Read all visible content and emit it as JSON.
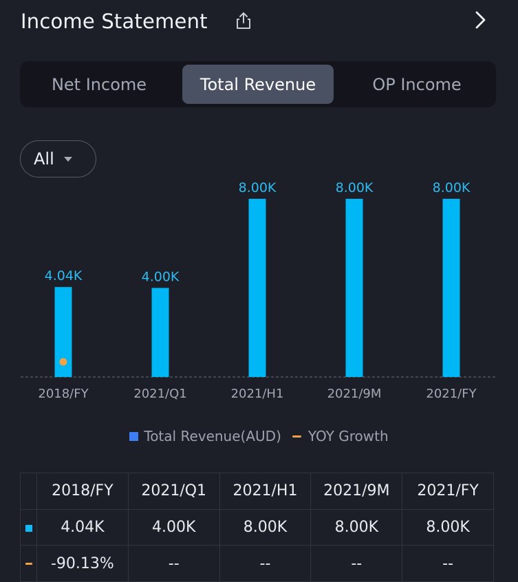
{
  "header": {
    "title": "Income Statement",
    "share_icon": "share-icon",
    "next_icon": "chevron-right-icon"
  },
  "tabs": [
    {
      "label": "Net Income",
      "active": false
    },
    {
      "label": "Total Revenue",
      "active": true
    },
    {
      "label": "OP Income",
      "active": false
    }
  ],
  "filter": {
    "label": "All",
    "icon": "caret-down-icon"
  },
  "colors": {
    "bar": "#00b7f5",
    "bar_label": "#2fbaf0",
    "yoy_marker": "#f2a246",
    "legend_revenue": "#3d7ef5",
    "negative": "#e8474d"
  },
  "chart_data": {
    "type": "bar",
    "categories": [
      "2018/FY",
      "2021/Q1",
      "2021/H1",
      "2021/9M",
      "2021/FY"
    ],
    "series": [
      {
        "name": "Total Revenue(AUD)",
        "type": "bar",
        "values": [
          4040,
          4000,
          8000,
          8000,
          8000
        ],
        "labels": [
          "4.04K",
          "4.00K",
          "8.00K",
          "8.00K",
          "8.00K"
        ]
      },
      {
        "name": "YOY Growth",
        "type": "line",
        "values": [
          -90.13,
          null,
          null,
          null,
          null
        ]
      }
    ],
    "ylim": [
      0,
      8000
    ],
    "legend": "bottom",
    "grid": false
  },
  "legend": {
    "revenue_label": "Total Revenue(AUD)",
    "yoy_label": "YOY Growth"
  },
  "table": {
    "headers": [
      "2018/FY",
      "2021/Q1",
      "2021/H1",
      "2021/9M",
      "2021/FY"
    ],
    "revenue_row": [
      "4.04K",
      "4.00K",
      "8.00K",
      "8.00K",
      "8.00K"
    ],
    "yoy_row": [
      "-90.13%",
      "--",
      "--",
      "--",
      "--"
    ]
  }
}
